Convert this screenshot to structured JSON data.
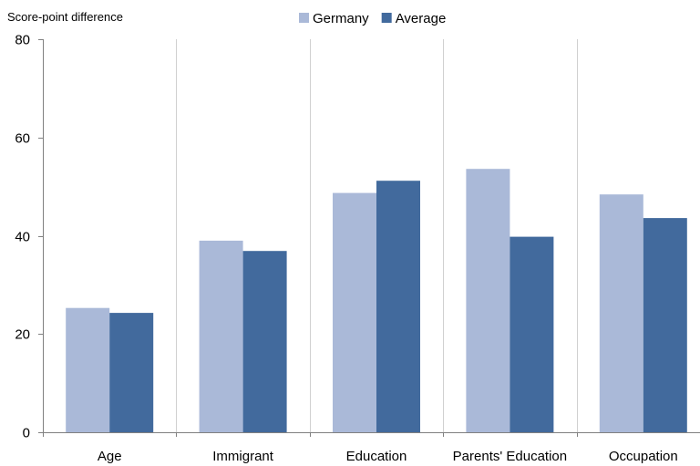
{
  "chart_data": {
    "type": "bar",
    "ylabel": "Score-point difference",
    "xlabel": "",
    "ylim": [
      0,
      80
    ],
    "yticks": [
      0,
      20,
      40,
      60,
      80
    ],
    "grid": "vertical separators between categories",
    "legend_position": "top",
    "categories": [
      "Age",
      "Immigrant",
      "Education",
      "Parents' Education",
      "Occupation"
    ],
    "series": [
      {
        "name": "Germany",
        "color": "#aab9d8",
        "values": [
          25.3,
          39.0,
          48.7,
          53.6,
          48.4
        ]
      },
      {
        "name": "Average",
        "color": "#426a9d",
        "values": [
          24.3,
          36.9,
          51.2,
          39.8,
          43.6
        ]
      }
    ]
  }
}
